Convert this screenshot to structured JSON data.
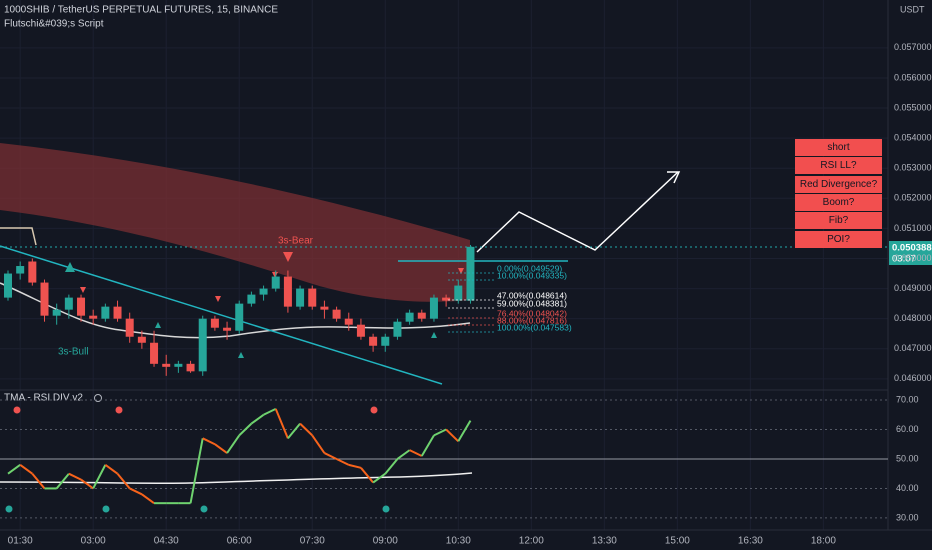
{
  "chart_data": {
    "type": "candlestick",
    "title": "1000SHIB / TetherUS PERPETUAL FUTURES, 15, BINANCE",
    "subtitle": "Flutschi&#039;s Script",
    "currency": "USDT",
    "last_price": "0.050388",
    "countdown": "03:07",
    "x": [
      "01:15",
      "01:30",
      "01:45",
      "02:00",
      "02:15",
      "02:30",
      "02:45",
      "03:00",
      "03:15",
      "03:30",
      "03:45",
      "04:00",
      "04:15",
      "04:30",
      "04:45",
      "05:00",
      "05:15",
      "05:30",
      "05:45",
      "06:00",
      "06:15",
      "06:30",
      "06:45",
      "07:00",
      "07:15",
      "07:30",
      "07:45",
      "08:00",
      "08:15",
      "08:30",
      "08:45",
      "09:00",
      "09:15",
      "09:30",
      "09:45",
      "10:00",
      "10:15",
      "10:30",
      "10:45"
    ],
    "open": [
      0.0487,
      0.0495,
      0.0499,
      0.0492,
      0.0481,
      0.0483,
      0.0487,
      0.0481,
      0.048,
      0.0484,
      0.048,
      0.0474,
      0.0472,
      0.0465,
      0.0464,
      0.0465,
      0.04625,
      0.048,
      0.0477,
      0.0476,
      0.0485,
      0.0488,
      0.049,
      0.0494,
      0.0484,
      0.049,
      0.0484,
      0.0483,
      0.048,
      0.0478,
      0.0474,
      0.0471,
      0.0474,
      0.0479,
      0.0482,
      0.048,
      0.0487,
      0.0486,
      0.0486
    ],
    "high": [
      0.0496,
      0.0499,
      0.05,
      0.0493,
      0.0485,
      0.0488,
      0.0488,
      0.0483,
      0.0485,
      0.0486,
      0.0482,
      0.0476,
      0.0476,
      0.0468,
      0.0466,
      0.0466,
      0.0481,
      0.0481,
      0.0479,
      0.0486,
      0.0489,
      0.0491,
      0.0496,
      0.0496,
      0.0491,
      0.0491,
      0.0486,
      0.0484,
      0.0482,
      0.048,
      0.0475,
      0.0475,
      0.048,
      0.0483,
      0.0483,
      0.0488,
      0.0488,
      0.0493,
      0.05045
    ],
    "low": [
      0.0486,
      0.0493,
      0.0491,
      0.0479,
      0.0478,
      0.048,
      0.0479,
      0.0478,
      0.0479,
      0.0479,
      0.0472,
      0.047,
      0.0464,
      0.0461,
      0.0462,
      0.0462,
      0.0461,
      0.0476,
      0.0473,
      0.0475,
      0.0484,
      0.0486,
      0.0489,
      0.0482,
      0.0483,
      0.0483,
      0.048,
      0.0479,
      0.0476,
      0.0473,
      0.0469,
      0.0469,
      0.0473,
      0.0478,
      0.0479,
      0.0479,
      0.0484,
      0.0485,
      0.0485
    ],
    "close": [
      0.0495,
      0.04975,
      0.0492,
      0.0481,
      0.0483,
      0.0487,
      0.0481,
      0.048,
      0.0484,
      0.048,
      0.0474,
      0.0472,
      0.0465,
      0.0464,
      0.0465,
      0.04625,
      0.048,
      0.0477,
      0.0476,
      0.0485,
      0.0488,
      0.049,
      0.0494,
      0.0484,
      0.049,
      0.0484,
      0.0483,
      0.048,
      0.0478,
      0.0474,
      0.0471,
      0.0474,
      0.0479,
      0.0482,
      0.048,
      0.0487,
      0.0486,
      0.0491,
      0.050388
    ],
    "up_color": "#26a69a",
    "down_color": "#ef5350",
    "ylim": [
      0.04563,
      0.05859
    ],
    "yticks": [
      {
        "value": 0.046,
        "label": "0.046000"
      },
      {
        "value": 0.047,
        "label": "0.047000"
      },
      {
        "value": 0.048,
        "label": "0.048000"
      },
      {
        "value": 0.049,
        "label": "0.049000"
      },
      {
        "value": 0.05,
        "label": "0.050000"
      },
      {
        "value": 0.051,
        "label": "0.051000"
      },
      {
        "value": 0.052,
        "label": "0.052000"
      },
      {
        "value": 0.053,
        "label": "0.053000"
      },
      {
        "value": 0.054,
        "label": "0.054000"
      },
      {
        "value": 0.055,
        "label": "0.055000"
      },
      {
        "value": 0.056,
        "label": "0.056000"
      },
      {
        "value": 0.057,
        "label": "0.057000"
      }
    ],
    "xticks": [
      "01:30",
      "03:00",
      "04:30",
      "06:00",
      "07:30",
      "09:00",
      "10:30",
      "12:00",
      "13:30",
      "15:00",
      "16:30",
      "18:00"
    ],
    "annotations": [
      "3s-Bear",
      "3s-Bull"
    ],
    "fib_levels": [
      "0.00%(0.049529)",
      "10.00%(0.049335)",
      "47.00%(0.048614)",
      "59.00%(0.048381)",
      "76.40%(0.048042)",
      "88.00%(0.047816)",
      "100.00%(0.047583)"
    ],
    "buttons": [
      "short",
      "RSI LL?",
      "Red Divergence?",
      "Boom?",
      "Fib?",
      "POI?"
    ],
    "rsi": {
      "name": "TMA - RSI DIV v2",
      "values": [
        45,
        48,
        45,
        40,
        40,
        45,
        43,
        40,
        48,
        45,
        40,
        38,
        35,
        35,
        35,
        35,
        57,
        55,
        52,
        58,
        62,
        65,
        67,
        57,
        62,
        58,
        52,
        50,
        48,
        47,
        42,
        45,
        50,
        53,
        51,
        58,
        60,
        56,
        63
      ],
      "up_color": "#6fd36f",
      "down_color": "#f7631b",
      "ylim": [
        25.9,
        73.4
      ],
      "yticks": [
        {
          "value": 30,
          "label": "30.00"
        },
        {
          "value": 40,
          "label": "40.00"
        },
        {
          "value": 50,
          "label": "50.00"
        },
        {
          "value": 60,
          "label": "60.00"
        },
        {
          "value": 70,
          "label": "70.00"
        }
      ]
    }
  }
}
